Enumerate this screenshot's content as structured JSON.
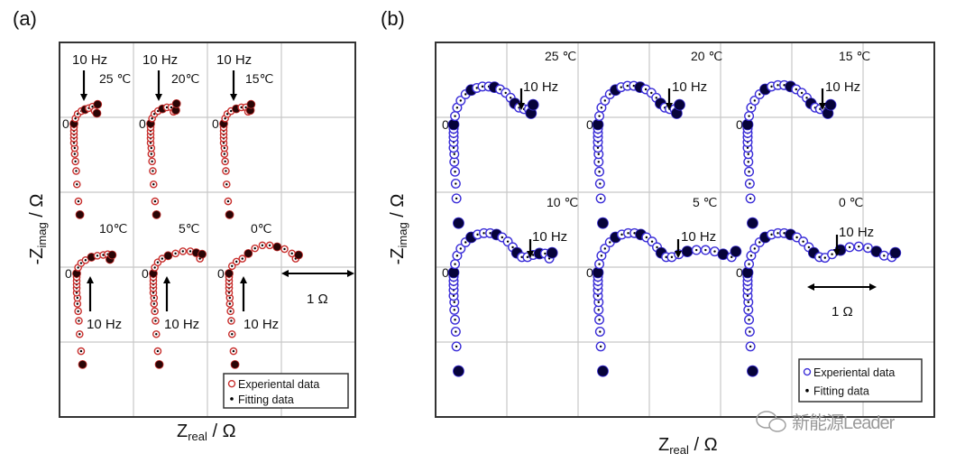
{
  "chart_data": [
    {
      "id": "a",
      "type": "scatter",
      "panel_label": "(a)",
      "xlabel_main": "Z",
      "xlabel_sub": "real",
      "xlabel_unit": " / Ω",
      "ylabel_main": "-Z",
      "ylabel_sub": "imag",
      "ylabel_unit": " / Ω",
      "grid": true,
      "scale_bar": "1 Ω",
      "zero_label": "0",
      "freq_label": "10 Hz",
      "legend": {
        "placement": "bottom-right",
        "experimental": "Experiental data",
        "fitting": "Fitting data"
      },
      "colors": {
        "experimental": "#c8302e",
        "fit": "#2a0505"
      },
      "inductive_tail": [
        [
          0,
          0
        ],
        [
          0,
          -0.05
        ],
        [
          0,
          -0.1
        ],
        [
          0,
          -0.15
        ],
        [
          0,
          -0.2
        ],
        [
          0,
          -0.26
        ],
        [
          0.01,
          -0.33
        ],
        [
          0.01,
          -0.41
        ],
        [
          0.02,
          -0.51
        ],
        [
          0.03,
          -0.64
        ],
        [
          0.04,
          -0.82
        ],
        [
          0.06,
          -1.05
        ],
        [
          0.08,
          -1.23
        ]
      ],
      "series": [
        {
          "name": "25 ℃",
          "points": [
            [
              0.02,
              0.07
            ],
            [
              0.05,
              0.13
            ],
            [
              0.1,
              0.17
            ],
            [
              0.15,
              0.19
            ],
            [
              0.2,
              0.21
            ],
            [
              0.25,
              0.23
            ],
            [
              0.28,
              0.17
            ],
            [
              0.31,
              0.14
            ],
            [
              0.32,
              0.26
            ]
          ]
        },
        {
          "name": "20℃",
          "points": [
            [
              0.02,
              0.07
            ],
            [
              0.05,
              0.13
            ],
            [
              0.1,
              0.17
            ],
            [
              0.16,
              0.2
            ],
            [
              0.22,
              0.22
            ],
            [
              0.28,
              0.22
            ],
            [
              0.31,
              0.16
            ],
            [
              0.34,
              0.18
            ],
            [
              0.35,
              0.27
            ]
          ]
        },
        {
          "name": "15℃",
          "points": [
            [
              0.02,
              0.07
            ],
            [
              0.05,
              0.13
            ],
            [
              0.1,
              0.17
            ],
            [
              0.17,
              0.2
            ],
            [
              0.24,
              0.22
            ],
            [
              0.3,
              0.22
            ],
            [
              0.33,
              0.16
            ],
            [
              0.36,
              0.18
            ],
            [
              0.37,
              0.26
            ]
          ]
        },
        {
          "name": "10℃",
          "points": [
            [
              0.02,
              0.08
            ],
            [
              0.06,
              0.14
            ],
            [
              0.12,
              0.18
            ],
            [
              0.2,
              0.22
            ],
            [
              0.28,
              0.24
            ],
            [
              0.36,
              0.25
            ],
            [
              0.42,
              0.26
            ],
            [
              0.45,
              0.19
            ],
            [
              0.48,
              0.25
            ]
          ]
        },
        {
          "name": "5℃",
          "points": [
            [
              0.02,
              0.08
            ],
            [
              0.06,
              0.15
            ],
            [
              0.12,
              0.2
            ],
            [
              0.2,
              0.24
            ],
            [
              0.3,
              0.27
            ],
            [
              0.4,
              0.3
            ],
            [
              0.5,
              0.3
            ],
            [
              0.58,
              0.28
            ],
            [
              0.63,
              0.2
            ],
            [
              0.66,
              0.26
            ]
          ]
        },
        {
          "name": "0℃",
          "points": [
            [
              0.04,
              0.1
            ],
            [
              0.1,
              0.16
            ],
            [
              0.18,
              0.2
            ],
            [
              0.26,
              0.27
            ],
            [
              0.35,
              0.34
            ],
            [
              0.45,
              0.38
            ],
            [
              0.55,
              0.38
            ],
            [
              0.65,
              0.36
            ],
            [
              0.75,
              0.33
            ],
            [
              0.85,
              0.27
            ],
            [
              0.9,
              0.2
            ],
            [
              0.94,
              0.25
            ]
          ]
        }
      ]
    },
    {
      "id": "b",
      "type": "scatter",
      "panel_label": "(b)",
      "xlabel_main": "Z",
      "xlabel_sub": "real",
      "xlabel_unit": " / Ω",
      "ylabel_main": "-Z",
      "ylabel_sub": "imag",
      "ylabel_unit": " / Ω",
      "grid": true,
      "scale_bar": "1 Ω",
      "zero_label": "0",
      "freq_label": "10 Hz",
      "legend": {
        "placement": "bottom-right",
        "experimental": "Experiental data",
        "fitting": "Fitting data"
      },
      "colors": {
        "experimental": "#3b2ed8",
        "fit": "#06033a"
      },
      "inductive_tail": [
        [
          0,
          0
        ],
        [
          0,
          -0.06
        ],
        [
          0,
          -0.12
        ],
        [
          0,
          -0.18
        ],
        [
          0,
          -0.25
        ],
        [
          0,
          -0.33
        ],
        [
          0.01,
          -0.42
        ],
        [
          0.01,
          -0.53
        ],
        [
          0.02,
          -0.67
        ],
        [
          0.03,
          -0.84
        ],
        [
          0.04,
          -1.05
        ],
        [
          0.07,
          -1.4
        ]
      ],
      "series": [
        {
          "name": "25 ℃",
          "points": [
            [
              0.02,
              0.12
            ],
            [
              0.05,
              0.24
            ],
            [
              0.1,
              0.34
            ],
            [
              0.17,
              0.43
            ],
            [
              0.25,
              0.49
            ],
            [
              0.33,
              0.52
            ],
            [
              0.41,
              0.54
            ],
            [
              0.5,
              0.54
            ],
            [
              0.58,
              0.53
            ],
            [
              0.66,
              0.5
            ],
            [
              0.74,
              0.45
            ],
            [
              0.81,
              0.38
            ],
            [
              0.87,
              0.3
            ],
            [
              0.93,
              0.24
            ],
            [
              1.0,
              0.22
            ],
            [
              1.07,
              0.22
            ],
            [
              1.1,
              0.16
            ],
            [
              1.13,
              0.28
            ]
          ]
        },
        {
          "name": "20 ℃",
          "points": [
            [
              0.02,
              0.12
            ],
            [
              0.05,
              0.24
            ],
            [
              0.1,
              0.34
            ],
            [
              0.17,
              0.43
            ],
            [
              0.25,
              0.49
            ],
            [
              0.33,
              0.53
            ],
            [
              0.42,
              0.55
            ],
            [
              0.51,
              0.55
            ],
            [
              0.6,
              0.53
            ],
            [
              0.68,
              0.5
            ],
            [
              0.76,
              0.45
            ],
            [
              0.83,
              0.38
            ],
            [
              0.89,
              0.3
            ],
            [
              0.95,
              0.24
            ],
            [
              1.02,
              0.22
            ],
            [
              1.09,
              0.22
            ],
            [
              1.12,
              0.16
            ],
            [
              1.16,
              0.28
            ]
          ]
        },
        {
          "name": "15 ℃",
          "points": [
            [
              0.02,
              0.12
            ],
            [
              0.05,
              0.24
            ],
            [
              0.1,
              0.34
            ],
            [
              0.17,
              0.43
            ],
            [
              0.25,
              0.5
            ],
            [
              0.34,
              0.54
            ],
            [
              0.43,
              0.56
            ],
            [
              0.52,
              0.56
            ],
            [
              0.61,
              0.54
            ],
            [
              0.69,
              0.5
            ],
            [
              0.77,
              0.45
            ],
            [
              0.84,
              0.38
            ],
            [
              0.9,
              0.3
            ],
            [
              0.96,
              0.24
            ],
            [
              1.03,
              0.22
            ],
            [
              1.1,
              0.23
            ],
            [
              1.14,
              0.16
            ],
            [
              1.18,
              0.28
            ]
          ]
        },
        {
          "name": "10 ℃",
          "points": [
            [
              0.02,
              0.12
            ],
            [
              0.05,
              0.24
            ],
            [
              0.1,
              0.34
            ],
            [
              0.17,
              0.43
            ],
            [
              0.25,
              0.5
            ],
            [
              0.34,
              0.54
            ],
            [
              0.43,
              0.56
            ],
            [
              0.52,
              0.56
            ],
            [
              0.61,
              0.54
            ],
            [
              0.69,
              0.5
            ],
            [
              0.77,
              0.44
            ],
            [
              0.84,
              0.36
            ],
            [
              0.9,
              0.28
            ],
            [
              0.97,
              0.22
            ],
            [
              1.05,
              0.22
            ],
            [
              1.13,
              0.25
            ],
            [
              1.22,
              0.27
            ],
            [
              1.3,
              0.27
            ],
            [
              1.36,
              0.2
            ],
            [
              1.4,
              0.28
            ]
          ]
        },
        {
          "name": "5 ℃",
          "points": [
            [
              0.02,
              0.12
            ],
            [
              0.05,
              0.24
            ],
            [
              0.1,
              0.34
            ],
            [
              0.17,
              0.43
            ],
            [
              0.25,
              0.5
            ],
            [
              0.34,
              0.54
            ],
            [
              0.43,
              0.56
            ],
            [
              0.52,
              0.56
            ],
            [
              0.61,
              0.54
            ],
            [
              0.69,
              0.5
            ],
            [
              0.77,
              0.44
            ],
            [
              0.84,
              0.36
            ],
            [
              0.9,
              0.28
            ],
            [
              0.97,
              0.22
            ],
            [
              1.05,
              0.22
            ],
            [
              1.15,
              0.26
            ],
            [
              1.27,
              0.3
            ],
            [
              1.4,
              0.32
            ],
            [
              1.53,
              0.32
            ],
            [
              1.66,
              0.3
            ],
            [
              1.78,
              0.26
            ],
            [
              1.9,
              0.22
            ],
            [
              1.96,
              0.3
            ]
          ]
        },
        {
          "name": "0 ℃",
          "points": [
            [
              0.02,
              0.12
            ],
            [
              0.05,
              0.24
            ],
            [
              0.1,
              0.34
            ],
            [
              0.17,
              0.43
            ],
            [
              0.25,
              0.5
            ],
            [
              0.34,
              0.54
            ],
            [
              0.43,
              0.56
            ],
            [
              0.52,
              0.56
            ],
            [
              0.61,
              0.54
            ],
            [
              0.7,
              0.5
            ],
            [
              0.79,
              0.44
            ],
            [
              0.87,
              0.36
            ],
            [
              0.94,
              0.28
            ],
            [
              1.02,
              0.22
            ],
            [
              1.1,
              0.21
            ],
            [
              1.2,
              0.26
            ],
            [
              1.32,
              0.32
            ],
            [
              1.45,
              0.36
            ],
            [
              1.58,
              0.37
            ],
            [
              1.71,
              0.35
            ],
            [
              1.83,
              0.3
            ],
            [
              1.94,
              0.24
            ],
            [
              2.05,
              0.22
            ],
            [
              2.1,
              0.28
            ]
          ]
        }
      ]
    }
  ],
  "watermark": "新能源Leader"
}
